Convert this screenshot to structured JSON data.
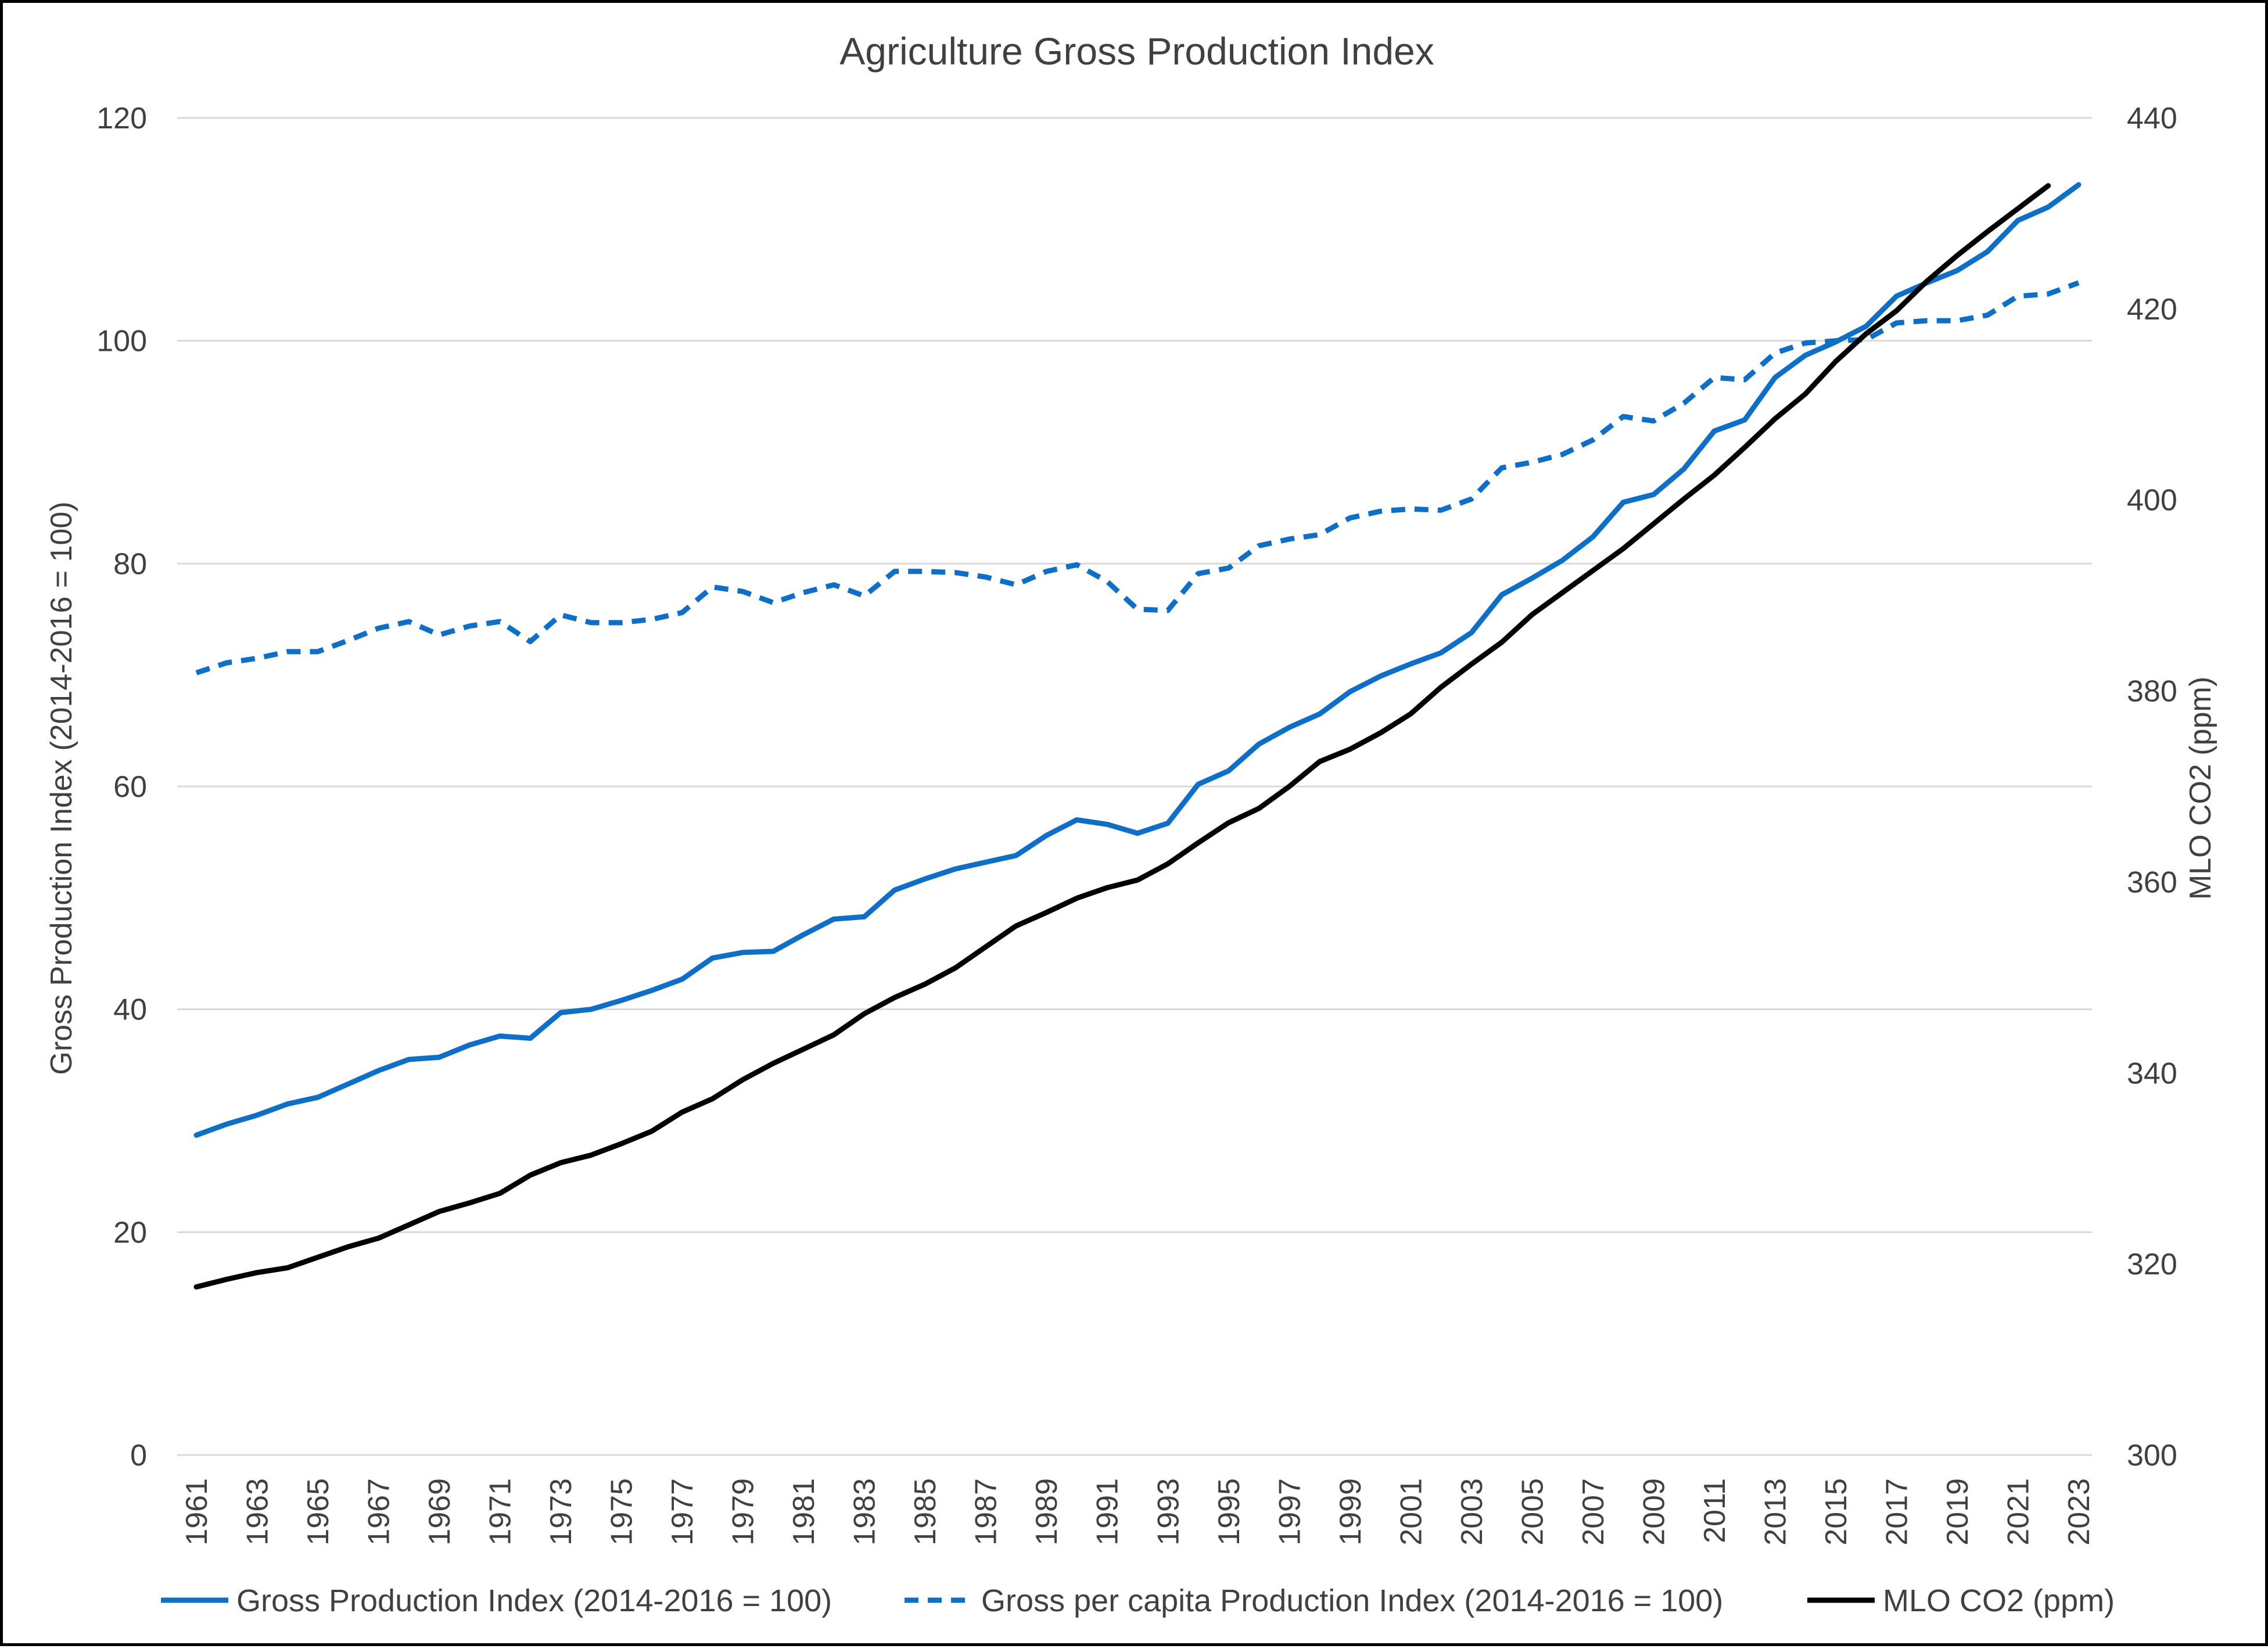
{
  "chart_data": {
    "type": "line",
    "title": "Agriculture  Gross Production Index",
    "ylabel": "Gross Production Index (2014-2016 = 100)",
    "y2label": "MLO CO2 (ppm)",
    "xlabel": "",
    "ylim": [
      0,
      120
    ],
    "y_ticks": [
      0,
      20,
      40,
      60,
      80,
      100,
      120
    ],
    "y2lim": [
      300,
      440
    ],
    "y2_ticks": [
      300,
      320,
      340,
      360,
      380,
      400,
      420,
      440
    ],
    "grid": true,
    "legend_position": "bottom",
    "x": [
      1961,
      1962,
      1963,
      1964,
      1965,
      1966,
      1967,
      1968,
      1969,
      1970,
      1971,
      1972,
      1973,
      1974,
      1975,
      1976,
      1977,
      1978,
      1979,
      1980,
      1981,
      1982,
      1983,
      1984,
      1985,
      1986,
      1987,
      1988,
      1989,
      1990,
      1991,
      1992,
      1993,
      1994,
      1995,
      1996,
      1997,
      1998,
      1999,
      2000,
      2001,
      2002,
      2003,
      2004,
      2005,
      2006,
      2007,
      2008,
      2009,
      2010,
      2011,
      2012,
      2013,
      2014,
      2015,
      2016,
      2017,
      2018,
      2019,
      2020,
      2021,
      2022,
      2023
    ],
    "x_tick_labels": [
      "1961",
      "1963",
      "1965",
      "1967",
      "1969",
      "1971",
      "1973",
      "1975",
      "1977",
      "1979",
      "1981",
      "1983",
      "1985",
      "1987",
      "1989",
      "1991",
      "1993",
      "1995",
      "1997",
      "1999",
      "2001",
      "2003",
      "2005",
      "2007",
      "2009",
      "2011",
      "2013",
      "2015",
      "2017",
      "2019",
      "2021",
      "2023"
    ],
    "series": [
      {
        "name": "Gross Production Index (2014-2016 = 100)",
        "axis": "left",
        "color": "#0f6fc6",
        "dash": "solid",
        "values": [
          28.7,
          29.7,
          30.5,
          31.5,
          32.1,
          33.3,
          34.5,
          35.5,
          35.7,
          36.8,
          37.6,
          37.4,
          39.7,
          40.0,
          40.8,
          41.7,
          42.7,
          44.6,
          45.1,
          45.2,
          46.7,
          48.1,
          48.3,
          50.7,
          51.7,
          52.6,
          53.2,
          53.8,
          55.6,
          57.0,
          56.6,
          55.8,
          56.7,
          60.2,
          61.4,
          63.8,
          65.3,
          66.5,
          68.5,
          69.9,
          71.0,
          72.0,
          73.8,
          77.2,
          78.7,
          80.3,
          82.4,
          85.5,
          86.2,
          88.5,
          91.9,
          92.9,
          96.7,
          98.7,
          99.9,
          101.3,
          104.0,
          105.2,
          106.3,
          108.0,
          110.8,
          112.0,
          114.0
        ]
      },
      {
        "name": "Gross per capita Production Index (2014-2016 = 100)",
        "axis": "left",
        "color": "#0f6fc6",
        "dash": "dashed",
        "values": [
          70.2,
          71.1,
          71.5,
          72.1,
          72.1,
          73.1,
          74.2,
          74.8,
          73.6,
          74.4,
          74.8,
          73.0,
          75.4,
          74.7,
          74.7,
          75.0,
          75.6,
          77.9,
          77.5,
          76.5,
          77.4,
          78.1,
          77.1,
          79.3,
          79.3,
          79.2,
          78.8,
          78.1,
          79.3,
          79.9,
          78.4,
          75.9,
          75.8,
          79.1,
          79.6,
          81.6,
          82.2,
          82.6,
          84.1,
          84.7,
          84.9,
          84.8,
          85.8,
          88.6,
          89.1,
          89.8,
          91.1,
          93.2,
          92.8,
          94.4,
          96.7,
          96.5,
          98.9,
          99.8,
          100.0,
          100.1,
          101.6,
          101.8,
          101.8,
          102.3,
          104.0,
          104.2,
          105.2
        ]
      },
      {
        "name": "MLO CO2 (ppm)",
        "axis": "right",
        "color": "#000000",
        "dash": "solid",
        "values": [
          317.6,
          318.4,
          319.1,
          319.6,
          320.7,
          321.8,
          322.7,
          324.1,
          325.5,
          326.4,
          327.4,
          329.3,
          330.6,
          331.4,
          332.6,
          333.9,
          335.9,
          337.3,
          339.3,
          341.0,
          342.5,
          344.0,
          346.2,
          347.9,
          349.3,
          351.0,
          353.2,
          355.4,
          356.8,
          358.3,
          359.4,
          360.2,
          361.9,
          364.1,
          366.2,
          367.7,
          370.0,
          372.6,
          373.9,
          375.6,
          377.6,
          380.4,
          382.8,
          385.1,
          388.0,
          390.3,
          392.6,
          394.9,
          397.5,
          400.1,
          402.6,
          405.5,
          408.5,
          411.1,
          414.5,
          417.4,
          419.8,
          422.9,
          425.6,
          428.1,
          430.5,
          432.9,
          null
        ]
      }
    ]
  }
}
